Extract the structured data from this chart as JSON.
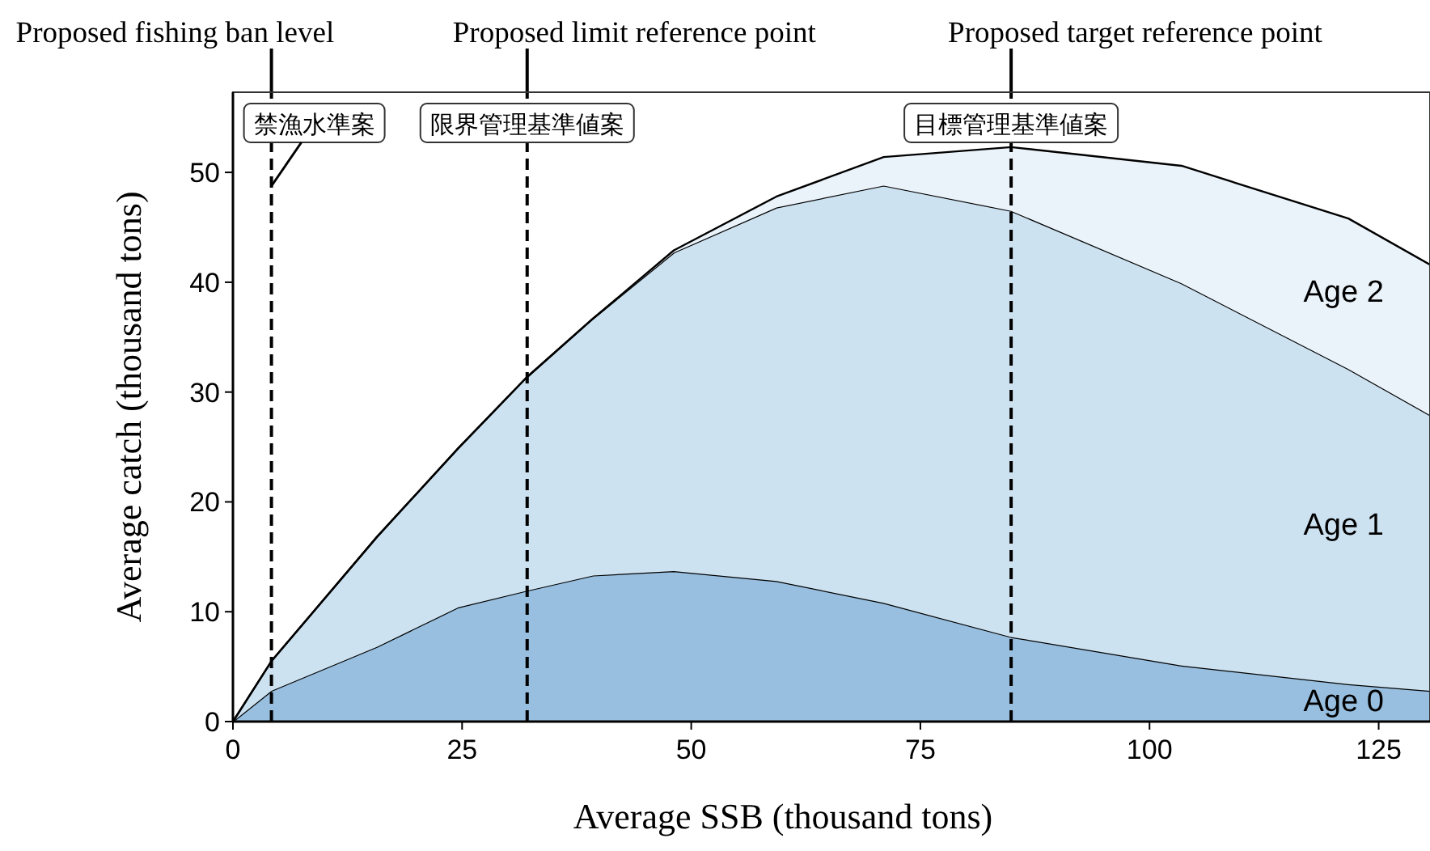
{
  "chart_data": {
    "type": "area",
    "stacked": true,
    "xlabel": "Average SSB (thousand tons)",
    "ylabel": "Average catch (thousand tons)",
    "x": [
      0,
      4.2,
      15.7,
      24.6,
      32,
      39.3,
      48.1,
      59.3,
      71,
      84.9,
      103.5,
      121.7,
      130.6
    ],
    "series": [
      {
        "name": "Age 0",
        "color": "#98bfdf",
        "values": [
          0,
          2.8,
          6.8,
          10.4,
          11.9,
          13.3,
          13.7,
          12.8,
          10.8,
          7.7,
          5.1,
          3.4,
          2.8
        ]
      },
      {
        "name": "Age 1",
        "color": "#cde2f0",
        "values": [
          0,
          2.7,
          10.0,
          14.5,
          19.4,
          23.4,
          29.0,
          34.0,
          38.0,
          38.8,
          34.8,
          28.7,
          25.1
        ]
      },
      {
        "name": "Age 2",
        "color": "#ebf3fa",
        "values": [
          0,
          0,
          0,
          0,
          0,
          0,
          0.2,
          1.0,
          2.6,
          5.8,
          10.7,
          13.7,
          13.7
        ]
      }
    ],
    "xlim": [
      0,
      130.6
    ],
    "ylim": [
      0,
      57.3
    ],
    "xticks": [
      0,
      25,
      50,
      75,
      100,
      125
    ],
    "yticks": [
      0,
      10,
      20,
      30,
      40,
      50
    ],
    "grid": false,
    "ref_lines": [
      {
        "axis": "x",
        "value": 4.2,
        "label": "Proposed fishing ban level",
        "line_style": "dashed"
      },
      {
        "axis": "x",
        "value": 32.1,
        "label": "Proposed limit reference point",
        "line_style": "dashed"
      },
      {
        "axis": "x",
        "value": 84.9,
        "label": "Proposed target reference point",
        "line_style": "dashed"
      }
    ],
    "annotations": [
      {
        "text": "禁漁水準案",
        "x": 4.2
      },
      {
        "text": "限界管理基準値案",
        "x": 32.1
      },
      {
        "text": "目標管理基準値案",
        "x": 84.9
      }
    ]
  }
}
